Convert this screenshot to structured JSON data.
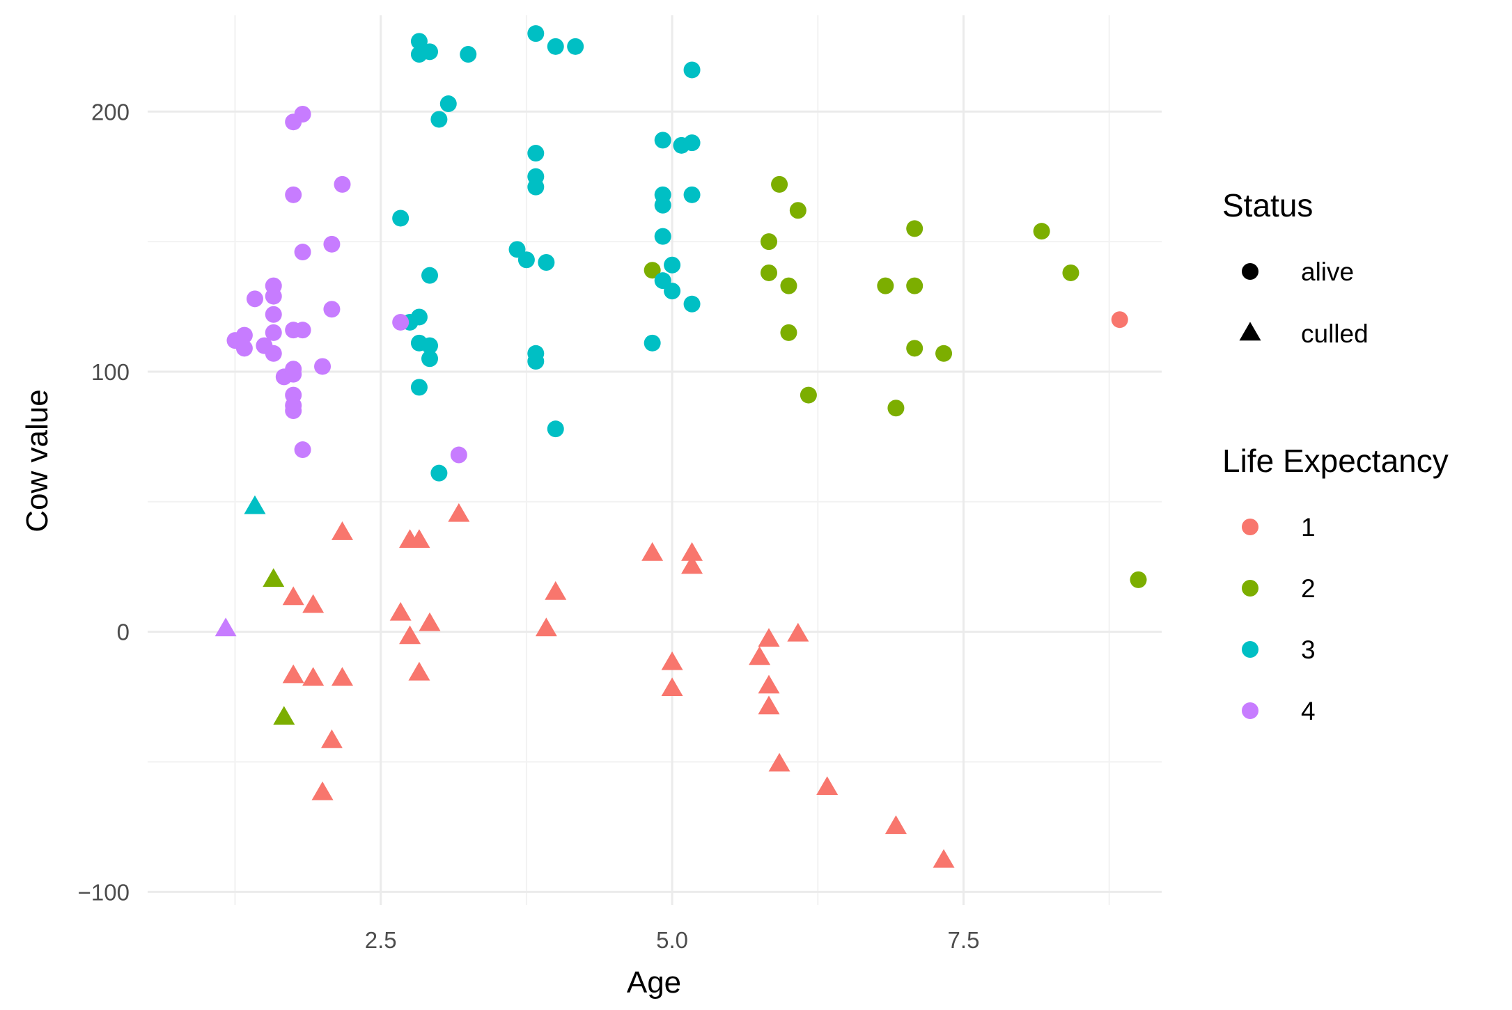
{
  "chart_data": {
    "type": "scatter",
    "xlabel": "Age",
    "ylabel": "Cow value",
    "xlim": [
      0.5,
      9.2
    ],
    "ylim": [
      -105,
      237
    ],
    "xticks": [
      2.5,
      5.0,
      7.5
    ],
    "xtick_labels": [
      "2.5",
      "5.0",
      "7.5"
    ],
    "x_minor_gridlines": [
      1.25,
      3.75,
      6.25,
      8.75
    ],
    "yticks": [
      -100,
      0,
      100,
      200
    ],
    "ytick_labels": [
      "−100",
      "0",
      "100",
      "200"
    ],
    "y_minor_gridlines": [
      -50,
      50,
      150
    ],
    "grid": true,
    "legend_position": "right",
    "colors": {
      "1": "#F8766D",
      "2": "#7CAE00",
      "3": "#00BFC4",
      "4": "#C77CFF"
    },
    "legends": {
      "status": {
        "title": "Status",
        "entries": [
          {
            "label": "alive",
            "shape": "circle"
          },
          {
            "label": "culled",
            "shape": "triangle"
          }
        ]
      },
      "life": {
        "title": "Life Expectancy",
        "entries": [
          {
            "label": "1",
            "group": "1"
          },
          {
            "label": "2",
            "group": "2"
          },
          {
            "label": "3",
            "group": "3"
          },
          {
            "label": "4",
            "group": "4"
          }
        ]
      }
    },
    "series": [
      {
        "name": "Life Expectancy 1 - alive",
        "group": "1",
        "shape": "circle",
        "points": [
          [
            8.84,
            120
          ]
        ]
      },
      {
        "name": "Life Expectancy 1 - culled",
        "group": "1",
        "shape": "triangle",
        "points": [
          [
            1.75,
            13
          ],
          [
            1.92,
            10
          ],
          [
            2.17,
            38
          ],
          [
            2.67,
            7
          ],
          [
            2.75,
            -2
          ],
          [
            2.75,
            35
          ],
          [
            2.83,
            35
          ],
          [
            2.83,
            -16
          ],
          [
            2.92,
            3
          ],
          [
            3.17,
            45
          ],
          [
            3.92,
            1
          ],
          [
            4.0,
            15
          ],
          [
            4.83,
            30
          ],
          [
            5.0,
            -12
          ],
          [
            5.0,
            -22
          ],
          [
            5.17,
            30
          ],
          [
            5.17,
            25
          ],
          [
            1.75,
            -17
          ],
          [
            1.92,
            -18
          ],
          [
            2.17,
            -18
          ],
          [
            2.08,
            -42
          ],
          [
            2.0,
            -62
          ],
          [
            5.75,
            -10
          ],
          [
            5.83,
            -3
          ],
          [
            5.83,
            -21
          ],
          [
            5.83,
            -29
          ],
          [
            6.08,
            -1
          ],
          [
            5.92,
            -51
          ],
          [
            6.33,
            -60
          ],
          [
            6.92,
            -75
          ],
          [
            7.33,
            -88
          ]
        ]
      },
      {
        "name": "Life Expectancy 2 - alive",
        "group": "2",
        "shape": "circle",
        "points": [
          [
            4.83,
            139
          ],
          [
            5.83,
            150
          ],
          [
            5.83,
            138
          ],
          [
            5.92,
            172
          ],
          [
            6.0,
            133
          ],
          [
            6.0,
            115
          ],
          [
            6.08,
            162
          ],
          [
            6.17,
            91
          ],
          [
            6.83,
            133
          ],
          [
            6.92,
            86
          ],
          [
            7.08,
            155
          ],
          [
            7.08,
            133
          ],
          [
            7.08,
            109
          ],
          [
            7.33,
            107
          ],
          [
            8.17,
            154
          ],
          [
            8.42,
            138
          ],
          [
            9.0,
            20
          ]
        ]
      },
      {
        "name": "Life Expectancy 2 - culled",
        "group": "2",
        "shape": "triangle",
        "points": [
          [
            1.58,
            20
          ],
          [
            1.67,
            -33
          ]
        ]
      },
      {
        "name": "Life Expectancy 3 - alive",
        "group": "3",
        "shape": "circle",
        "points": [
          [
            2.67,
            159
          ],
          [
            2.75,
            119
          ],
          [
            2.83,
            227
          ],
          [
            2.83,
            222
          ],
          [
            2.92,
            223
          ],
          [
            2.83,
            121
          ],
          [
            2.83,
            111
          ],
          [
            2.92,
            110
          ],
          [
            2.92,
            105
          ],
          [
            2.92,
            137
          ],
          [
            2.83,
            94
          ],
          [
            3.0,
            197
          ],
          [
            3.08,
            203
          ],
          [
            3.0,
            61
          ],
          [
            3.25,
            222
          ],
          [
            3.67,
            147
          ],
          [
            3.75,
            143
          ],
          [
            3.83,
            230
          ],
          [
            3.83,
            184
          ],
          [
            3.83,
            175
          ],
          [
            3.83,
            171
          ],
          [
            3.83,
            107
          ],
          [
            3.83,
            104
          ],
          [
            3.92,
            142
          ],
          [
            4.0,
            225
          ],
          [
            4.0,
            78
          ],
          [
            4.17,
            225
          ],
          [
            4.83,
            111
          ],
          [
            4.92,
            189
          ],
          [
            4.92,
            168
          ],
          [
            4.92,
            164
          ],
          [
            4.92,
            152
          ],
          [
            4.92,
            135
          ],
          [
            5.0,
            141
          ],
          [
            5.0,
            131
          ],
          [
            5.08,
            187
          ],
          [
            5.17,
            188
          ],
          [
            5.17,
            168
          ],
          [
            5.17,
            126
          ],
          [
            5.17,
            216
          ]
        ]
      },
      {
        "name": "Life Expectancy 3 - culled",
        "group": "3",
        "shape": "triangle",
        "points": [
          [
            1.42,
            48
          ]
        ]
      },
      {
        "name": "Life Expectancy 4 - alive",
        "group": "4",
        "shape": "circle",
        "points": [
          [
            1.25,
            112
          ],
          [
            1.33,
            109
          ],
          [
            1.33,
            114
          ],
          [
            1.42,
            128
          ],
          [
            1.5,
            110
          ],
          [
            1.58,
            133
          ],
          [
            1.58,
            129
          ],
          [
            1.58,
            122
          ],
          [
            1.58,
            115
          ],
          [
            1.58,
            107
          ],
          [
            1.67,
            98
          ],
          [
            1.75,
            101
          ],
          [
            1.75,
            99
          ],
          [
            1.75,
            116
          ],
          [
            1.75,
            91
          ],
          [
            1.75,
            87
          ],
          [
            1.75,
            85
          ],
          [
            1.75,
            196
          ],
          [
            1.75,
            168
          ],
          [
            1.83,
            199
          ],
          [
            1.83,
            146
          ],
          [
            1.83,
            116
          ],
          [
            1.83,
            70
          ],
          [
            2.0,
            102
          ],
          [
            2.08,
            149
          ],
          [
            2.08,
            124
          ],
          [
            2.17,
            172
          ],
          [
            2.67,
            119
          ],
          [
            3.17,
            68
          ]
        ]
      },
      {
        "name": "Life Expectancy 4 - culled",
        "group": "4",
        "shape": "triangle",
        "points": [
          [
            1.17,
            1
          ]
        ]
      }
    ]
  }
}
